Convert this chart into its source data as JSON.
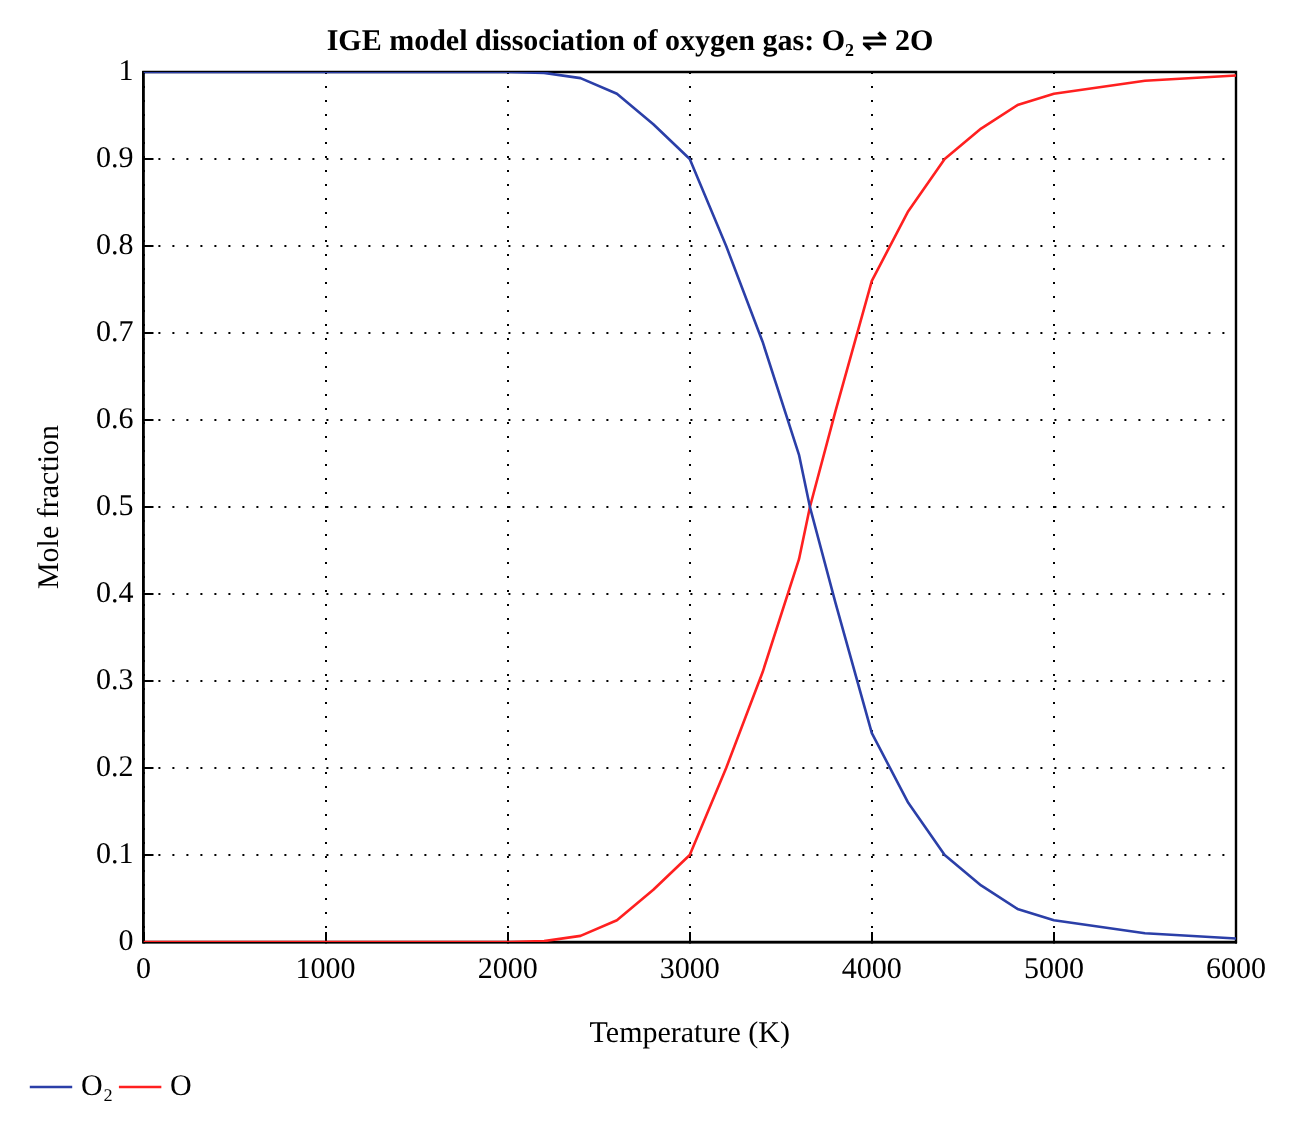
{
  "chart_data": {
    "type": "line",
    "title": "IGE model dissociation of oxygen gas: O₂ ⇌ 2O",
    "xlabel": "Temperature (K)",
    "ylabel": "Mole fraction",
    "x": [
      0,
      1000,
      2000,
      2200,
      2400,
      2600,
      2800,
      3000,
      3200,
      3400,
      3600,
      3660,
      3800,
      4000,
      4200,
      4400,
      4600,
      4800,
      5000,
      5500,
      6000
    ],
    "series": [
      {
        "name": "O₂",
        "color": "#2b3fa8",
        "values": [
          1,
          1,
          1,
          0.999,
          0.993,
          0.975,
          0.94,
          0.9,
          0.8,
          0.69,
          0.56,
          0.5,
          0.39,
          0.24,
          0.16,
          0.1,
          0.065,
          0.038,
          0.025,
          0.01,
          0.004
        ]
      },
      {
        "name": "O",
        "color": "#ff2020",
        "values": [
          0,
          0,
          0,
          0.001,
          0.007,
          0.025,
          0.06,
          0.1,
          0.2,
          0.31,
          0.44,
          0.5,
          0.61,
          0.76,
          0.84,
          0.9,
          0.935,
          0.962,
          0.975,
          0.99,
          0.996
        ]
      }
    ],
    "xlim": [
      0,
      6000
    ],
    "xticks": [
      0,
      1000,
      2000,
      3000,
      4000,
      5000,
      6000
    ],
    "ylim": [
      0,
      1
    ],
    "yticks": [
      0,
      0.1,
      0.2,
      0.3,
      0.4,
      0.5,
      0.6,
      0.7,
      0.8,
      0.9,
      1
    ],
    "grid": true,
    "legend": "bottom left",
    "marker": "none",
    "line_style": "solid"
  }
}
